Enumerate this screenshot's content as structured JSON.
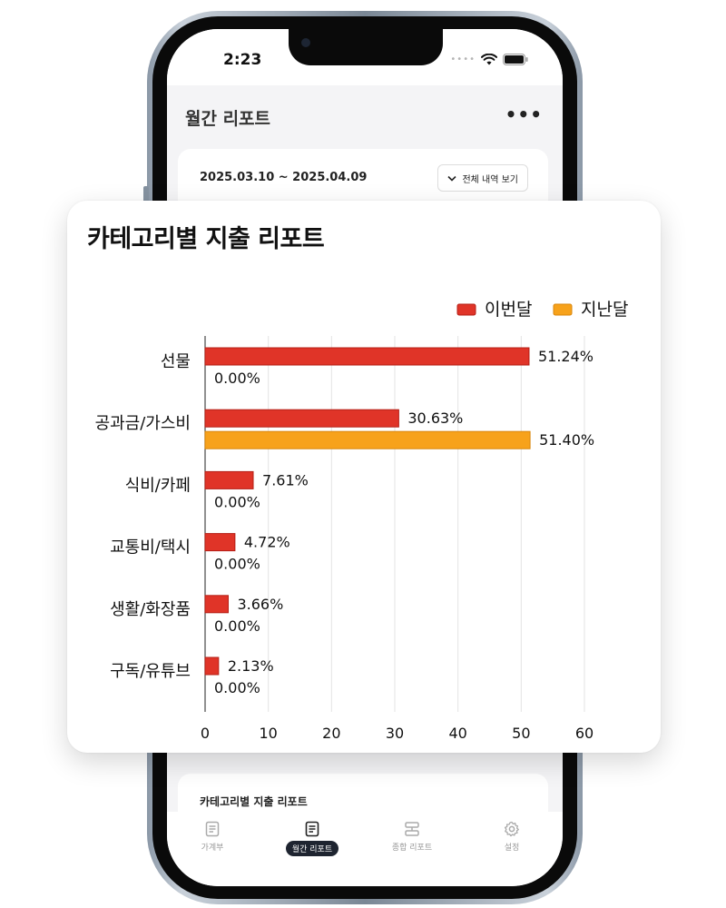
{
  "status": {
    "time": "2:23"
  },
  "app": {
    "title": "월간 리포트",
    "more": "•••"
  },
  "summary": {
    "date_range": "2025.03.10 ~ 2025.04.09",
    "view_all_label": "전체 내역 보기"
  },
  "bottom_card": {
    "title": "카테고리별 지출 리포트"
  },
  "tabs": [
    {
      "label": "가계부",
      "icon": "ledger-icon",
      "active": false
    },
    {
      "label": "월간 리포트",
      "icon": "report-icon",
      "active": true
    },
    {
      "label": "종합 리포트",
      "icon": "summary-icon",
      "active": false
    },
    {
      "label": "설정",
      "icon": "gear-icon",
      "active": false
    }
  ],
  "chart_data": {
    "type": "bar",
    "orientation": "horizontal",
    "title": "카테고리별 지출 리포트",
    "categories": [
      "선물",
      "공과금/가스비",
      "식비/카페",
      "교통비/택시",
      "생활/화장품",
      "구독/유튜브"
    ],
    "series": [
      {
        "name": "이번달",
        "color": "#e03428",
        "values": [
          51.24,
          30.63,
          7.61,
          4.72,
          3.66,
          2.13
        ],
        "labels": [
          "51.24%",
          "30.63%",
          "7.61%",
          "4.72%",
          "3.66%",
          "2.13%"
        ]
      },
      {
        "name": "지난달",
        "color": "#f7a21b",
        "values": [
          0,
          51.4,
          0,
          0,
          0,
          0
        ],
        "labels": [
          "0.00%",
          "51.40%",
          "0.00%",
          "0.00%",
          "0.00%",
          "0.00%"
        ]
      }
    ],
    "xlim": [
      0,
      60
    ],
    "xticks": [
      "0",
      "10",
      "20",
      "30",
      "40",
      "50",
      "60"
    ],
    "legend_position": "top-right",
    "grid": true
  }
}
